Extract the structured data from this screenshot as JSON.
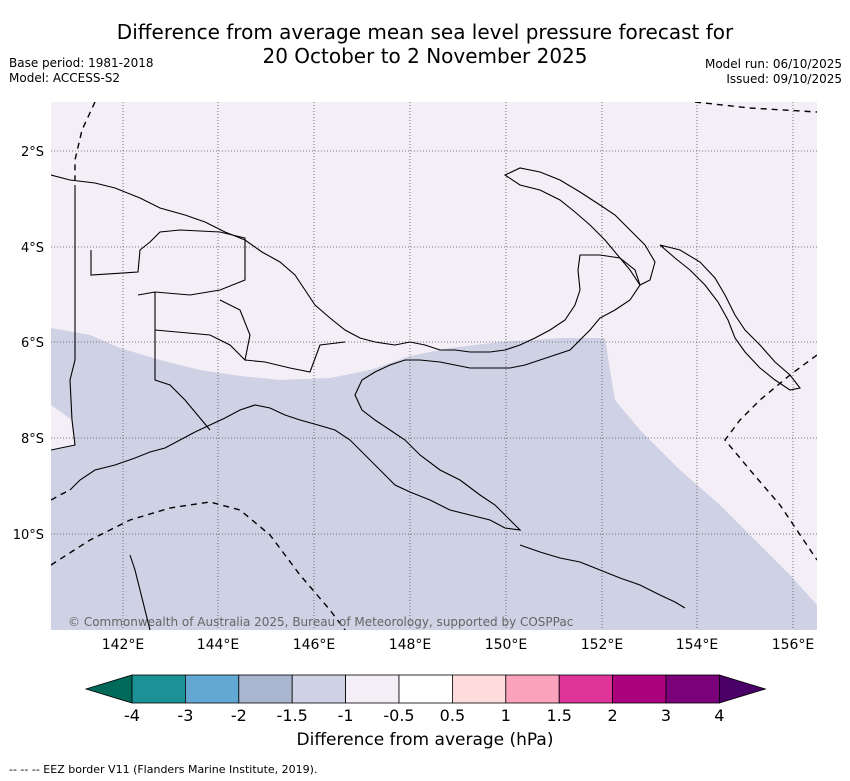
{
  "header": {
    "title_line1": "Difference from average mean sea level pressure forecast for",
    "title_line2": "20 October to 2 November 2025",
    "base_period": "Base period: 1981-2018",
    "model": "Model: ACCESS-S2",
    "model_run": "Model run: 06/10/2025",
    "issued": "Issued: 09/10/2025"
  },
  "map": {
    "lon_ticks": [
      "142°E",
      "144°E",
      "146°E",
      "148°E",
      "150°E",
      "152°E",
      "154°E",
      "156°E"
    ],
    "lat_ticks": [
      "2°S",
      "4°S",
      "6°S",
      "8°S",
      "10°S"
    ],
    "copyright": "© Commonwealth of Australia 2025, Bureau of Meteorology, supported by COSPPac",
    "colors": {
      "ocean_light": "#f4eef6",
      "shade_neg1": "#cfd1e5",
      "land_outline": "#000000"
    }
  },
  "colorbar": {
    "ticks": [
      "-4",
      "-3",
      "-2",
      "-1.5",
      "-1",
      "-0.5",
      "0.5",
      "1",
      "1.5",
      "2",
      "3",
      "4"
    ],
    "colors": [
      "#00695a",
      "#1a9296",
      "#63a8d2",
      "#aab5d0",
      "#cfd1e5",
      "#f4eef6",
      "#ffffff",
      "#fedcdc",
      "#fba3bc",
      "#df3598",
      "#ac027e",
      "#7a017a",
      "#4a0067"
    ],
    "label": "Difference from average (hPa)"
  },
  "footnote": "-- -- -- EEZ border V11 (Flanders Marine Institute, 2019)."
}
